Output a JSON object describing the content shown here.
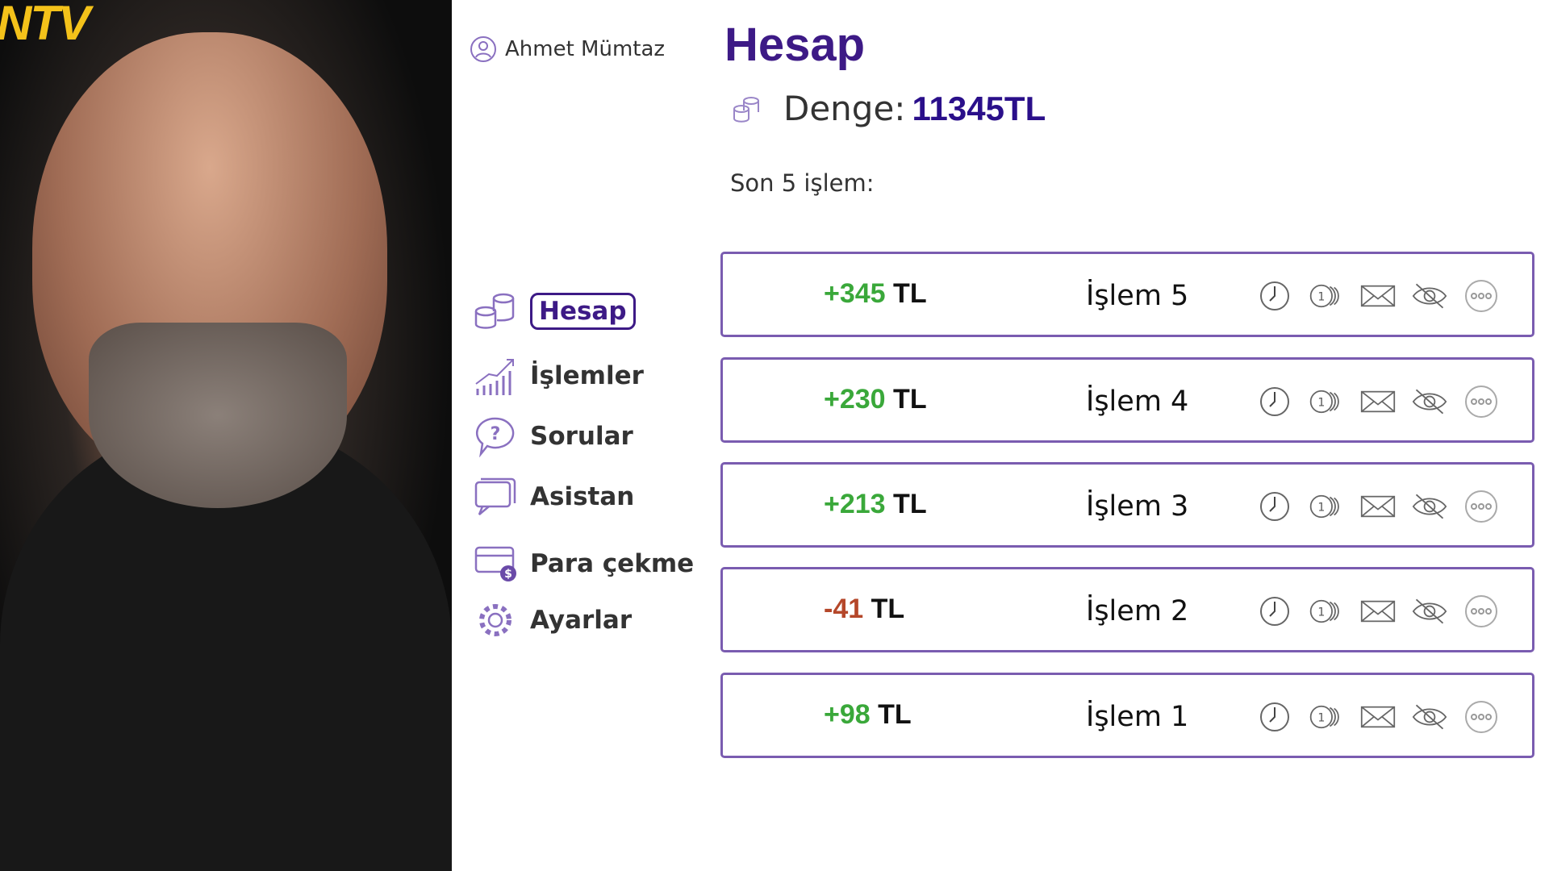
{
  "overlay": {
    "channel_logo": "NTV"
  },
  "user": {
    "name": "Ahmet Mümtaz",
    "icon": "user-icon"
  },
  "header": {
    "title": "Hesap",
    "balance_label": "Denge:",
    "balance_value": "11345TL"
  },
  "recent_label": "Son 5 işlem:",
  "sidebar": {
    "items": [
      {
        "label": "Hesap",
        "icon": "coins-icon",
        "active": true
      },
      {
        "label": "İşlemler",
        "icon": "chart-growth-icon"
      },
      {
        "label": "Sorular",
        "icon": "question-bubble-icon"
      },
      {
        "label": "Asistan",
        "icon": "chat-icon"
      },
      {
        "label": "Para çekme",
        "icon": "card-dollar-icon"
      },
      {
        "label": "Ayarlar",
        "icon": "gear-icon"
      }
    ]
  },
  "transactions": [
    {
      "amount": "+345",
      "currency": "TL",
      "name": "İşlem 5",
      "type": "positive"
    },
    {
      "amount": "+230",
      "currency": "TL",
      "name": "İşlem 4",
      "type": "positive"
    },
    {
      "amount": "+213",
      "currency": "TL",
      "name": "İşlem 3",
      "type": "positive"
    },
    {
      "amount": "-41",
      "currency": "TL",
      "name": "İşlem 2",
      "type": "negative"
    },
    {
      "amount": "+98",
      "currency": "TL",
      "name": "İşlem 1",
      "type": "positive"
    }
  ],
  "row_actions": [
    "clock-icon",
    "coin-icon",
    "mail-icon",
    "eye-off-icon",
    "more-icon"
  ],
  "colors": {
    "accent": "#3d1a86",
    "border": "#7a5cb0",
    "positive": "#3aa83a",
    "negative": "#b5472a"
  }
}
